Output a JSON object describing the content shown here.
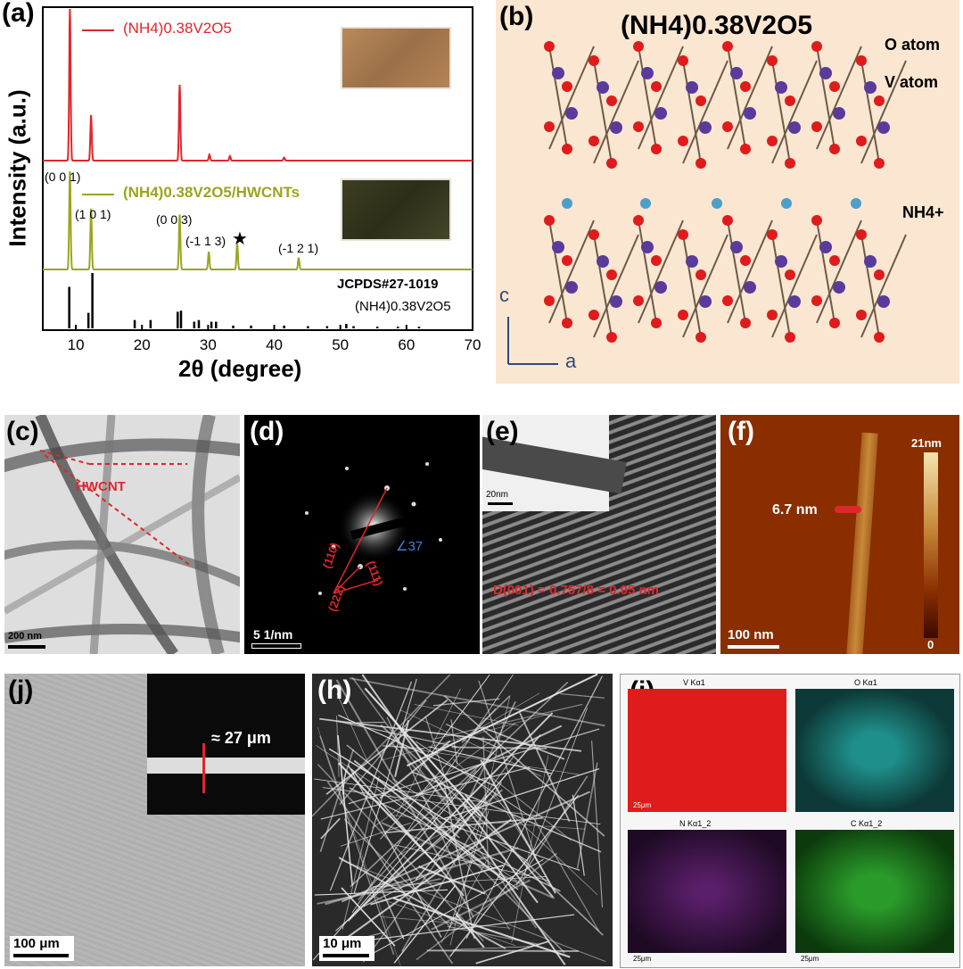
{
  "figure": {
    "a": {
      "label": "(a)",
      "ylabel": "Intensity (a.u.)",
      "xlabel": "2θ (degree)",
      "legend1": "(NH4)0.38V2O5",
      "legend2": "(NH4)0.38V2O5/HWCNTs",
      "ref_code": "JCPDS#27-1019",
      "ref_formula": "(NH4)0.38V2O5",
      "peaks": [
        "(0 0 1)",
        "(1 0 1)",
        "(0 0 3)",
        "(-1 1 3)",
        "(-1 2 1)"
      ],
      "star": "★",
      "colors": {
        "pure": "#e0262b",
        "composite": "#9aa51e",
        "reference": "#000000"
      }
    },
    "b": {
      "label": "(b)",
      "title": "(NH4)0.38V2O5",
      "o_atom": "O atom",
      "v_atom": "V atom",
      "nh4": "NH4+",
      "axis_c": "c",
      "axis_a": "a"
    },
    "c": {
      "label": "(c)",
      "annotation": "HWCNT",
      "scale": "200 nm"
    },
    "d": {
      "label": "(d)",
      "angle": "∠37",
      "spots": [
        "(110)",
        "(222)",
        "(111)"
      ],
      "scale": "5 1/nm"
    },
    "e": {
      "label": "(e)",
      "inset_scale": "20nm",
      "d_spacing": "D(001) = 0.757/8 = 0.95 nm"
    },
    "f": {
      "label": "(f)",
      "height": "6.7 nm",
      "cbar_max": "21nm",
      "cbar_min": "0",
      "scale": "100 nm"
    },
    "j": {
      "label": "(j)",
      "thickness": "≈ 27 μm",
      "scale": "100 μm"
    },
    "h": {
      "label": "(h)",
      "scale": "10 μm"
    },
    "i": {
      "label": "(i)",
      "maps": [
        "V Kα1",
        "O Kα1",
        "N Kα1_2",
        "C Kα1_2"
      ],
      "scale": "25μm",
      "map_colors": [
        "#e01b1b",
        "#1f8f8a",
        "#5a1f6a",
        "#2a9a2a"
      ]
    }
  },
  "chart_data": {
    "type": "line",
    "title": "",
    "xlabel": "2θ (degree)",
    "ylabel": "Intensity (a.u.)",
    "xlim": [
      5,
      70
    ],
    "xticks": [
      10,
      20,
      30,
      40,
      50,
      60,
      70
    ],
    "series": [
      {
        "name": "(NH4)0.38V2O5",
        "x": [
          9.1,
          12.3,
          25.7,
          30.2,
          33.3,
          41.5
        ],
        "values": [
          1.0,
          0.3,
          0.5,
          0.04,
          0.03,
          0.02
        ]
      },
      {
        "name": "(NH4)0.38V2O5/HWCNTs",
        "x": [
          9.1,
          12.3,
          25.7,
          30.1,
          34.4,
          43.7
        ],
        "values": [
          1.0,
          0.62,
          0.56,
          0.18,
          0.26,
          0.12
        ]
      },
      {
        "name": "JCPDS#27-1019",
        "x": [
          9.0,
          11.9,
          12.5,
          18.9,
          21.3,
          25.4,
          25.9,
          27.9,
          28.6,
          30.5,
          31.2,
          33.8,
          36.5,
          41.5,
          45.1,
          48.0,
          50.9,
          52.0,
          55.6,
          58.7,
          61.9
        ],
        "values": [
          0.75,
          0.28,
          1.0,
          0.15,
          0.15,
          0.3,
          0.32,
          0.12,
          0.15,
          0.12,
          0.12,
          0.05,
          0.05,
          0.05,
          0.04,
          0.04,
          0.08,
          0.04,
          0.03,
          0.03,
          0.03
        ]
      }
    ],
    "grid": false
  }
}
